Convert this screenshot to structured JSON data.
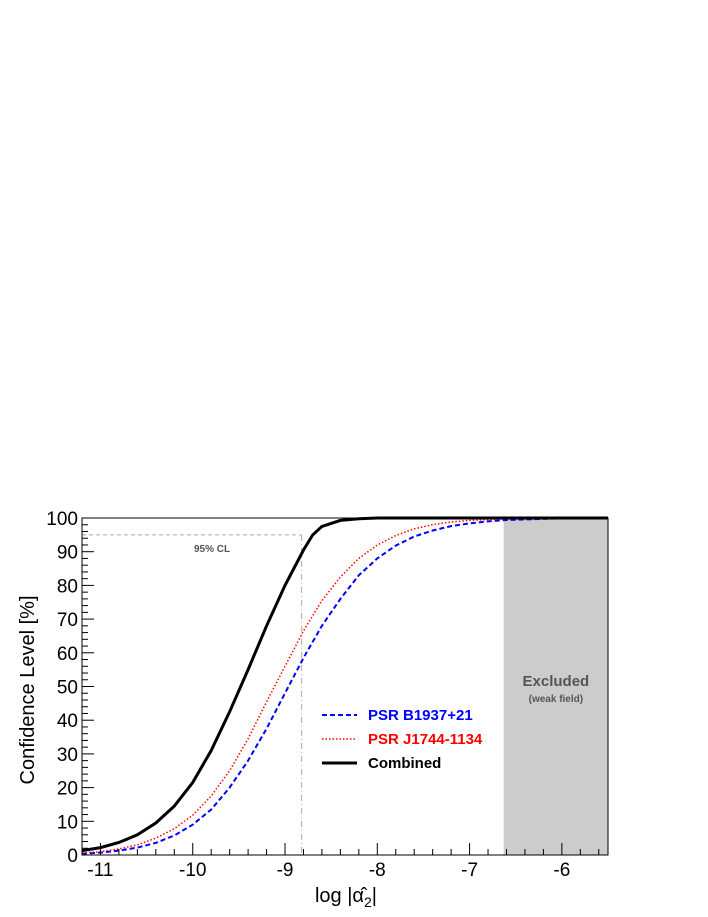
{
  "chart_data": {
    "type": "line",
    "xlabel": "log |α̂",
    "xlabel_sub": "2",
    "ylabel": "Confidence Level [%]",
    "xlim": [
      -11.2,
      -5.5
    ],
    "ylim": [
      0,
      100
    ],
    "x_ticks": [
      -11,
      -10,
      -9,
      -8,
      -7,
      -6
    ],
    "y_ticks": [
      0,
      10,
      20,
      30,
      40,
      50,
      60,
      70,
      80,
      90,
      100
    ],
    "grid": false,
    "legend_position": "center-right",
    "series": [
      {
        "name": "PSR B1937+21",
        "style": "dashed",
        "color": "#0000ff",
        "points": [
          [
            -11.2,
            0.4
          ],
          [
            -11.0,
            0.7
          ],
          [
            -10.8,
            1.3
          ],
          [
            -10.6,
            2.2
          ],
          [
            -10.4,
            3.6
          ],
          [
            -10.2,
            5.8
          ],
          [
            -10.0,
            9.0
          ],
          [
            -9.8,
            13.5
          ],
          [
            -9.6,
            20.0
          ],
          [
            -9.4,
            28.0
          ],
          [
            -9.2,
            37.5
          ],
          [
            -9.0,
            48.0
          ],
          [
            -8.8,
            58.5
          ],
          [
            -8.6,
            68.0
          ],
          [
            -8.4,
            76.0
          ],
          [
            -8.2,
            83.0
          ],
          [
            -8.0,
            88.0
          ],
          [
            -7.8,
            91.8
          ],
          [
            -7.6,
            94.5
          ],
          [
            -7.4,
            96.3
          ],
          [
            -7.2,
            97.6
          ],
          [
            -7.0,
            98.4
          ],
          [
            -6.8,
            99.0
          ],
          [
            -6.6,
            99.4
          ],
          [
            -6.0,
            99.9
          ],
          [
            -5.5,
            100
          ]
        ]
      },
      {
        "name": "PSR J1744-1134",
        "style": "dotted",
        "color": "#ff0000",
        "points": [
          [
            -11.2,
            0.6
          ],
          [
            -11.0,
            1.0
          ],
          [
            -10.8,
            1.8
          ],
          [
            -10.6,
            3.0
          ],
          [
            -10.4,
            5.0
          ],
          [
            -10.2,
            7.8
          ],
          [
            -10.0,
            11.8
          ],
          [
            -9.8,
            17.5
          ],
          [
            -9.6,
            25.0
          ],
          [
            -9.4,
            34.5
          ],
          [
            -9.2,
            45.5
          ],
          [
            -9.0,
            56.0
          ],
          [
            -8.8,
            66.5
          ],
          [
            -8.6,
            75.5
          ],
          [
            -8.4,
            82.5
          ],
          [
            -8.2,
            88.0
          ],
          [
            -8.0,
            92.0
          ],
          [
            -7.8,
            94.8
          ],
          [
            -7.6,
            96.8
          ],
          [
            -7.4,
            98.0
          ],
          [
            -7.2,
            98.8
          ],
          [
            -7.0,
            99.3
          ],
          [
            -6.6,
            99.8
          ],
          [
            -5.5,
            100
          ]
        ]
      },
      {
        "name": "Combined",
        "style": "solid",
        "color": "#000000",
        "points": [
          [
            -11.2,
            1.3
          ],
          [
            -11.0,
            2.2
          ],
          [
            -10.8,
            3.7
          ],
          [
            -10.6,
            6.0
          ],
          [
            -10.4,
            9.5
          ],
          [
            -10.2,
            14.5
          ],
          [
            -10.0,
            21.5
          ],
          [
            -9.8,
            31.0
          ],
          [
            -9.6,
            42.5
          ],
          [
            -9.4,
            55.0
          ],
          [
            -9.2,
            68.0
          ],
          [
            -9.0,
            80.0
          ],
          [
            -8.8,
            90.5
          ],
          [
            -8.7,
            95.0
          ],
          [
            -8.6,
            97.5
          ],
          [
            -8.4,
            99.3
          ],
          [
            -8.2,
            99.8
          ],
          [
            -8.0,
            100
          ],
          [
            -5.5,
            100
          ]
        ]
      }
    ],
    "cl_line": {
      "label": "95% CL",
      "y": 95,
      "x": -8.82
    },
    "excluded_region": {
      "x_from": -6.63,
      "x_to": -5.5,
      "label": "Excluded",
      "sublabel": "(weak field)",
      "color": "#cccccc"
    }
  }
}
